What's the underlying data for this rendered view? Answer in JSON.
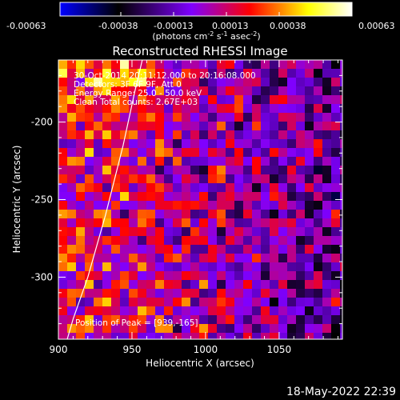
{
  "chart_data": {
    "type": "heatmap",
    "title": "Reconstructed RHESSI Image",
    "xlabel": "Heliocentric X (arcsec)",
    "ylabel": "Heliocentric Y (arcsec)",
    "xlim": [
      900,
      1093
    ],
    "ylim": [
      -340,
      -160
    ],
    "x_ticks": [
      "900",
      "950",
      "1000",
      "1050"
    ],
    "y_ticks": [
      "-200",
      "-250",
      "-300"
    ],
    "x_tick_values": [
      900,
      950,
      1000,
      1050
    ],
    "y_tick_values": [
      -200,
      -250,
      -300
    ],
    "colorbar": {
      "range": [
        -0.00063,
        0.00063
      ],
      "tick_labels": [
        "-0.00063",
        "-0.00038",
        "-0.00013",
        "0.00013",
        "0.00038",
        "0.00063"
      ],
      "unit_label_parts": [
        "(photons cm",
        "-2",
        " s",
        "-1",
        " asec",
        "-2",
        ")"
      ],
      "colors": [
        "#0000ff",
        "#000000",
        "#7f00ff",
        "#ff0000",
        "#ffff00",
        "#ffffff"
      ]
    },
    "annotations": {
      "time_range": "30-Oct-2014 20:11:12.000 to 20:16:08.000",
      "detectors": "Detectors: 3F 6F 9F, Att 0",
      "energy_range": "Energy Range: 25.0 - 50.0 keV",
      "method": "Clean    Total counts: 2.67E+03",
      "peak": "Position of Peak = [939,-165]"
    },
    "peak_position": [
      939,
      -165
    ],
    "limb_arc": [
      [
        906,
        -340
      ],
      [
        910,
        -327
      ],
      [
        920,
        -300
      ],
      [
        932,
        -260
      ],
      [
        944,
        -215
      ],
      [
        952,
        -180
      ],
      [
        957,
        -160
      ]
    ]
  },
  "timestamp": "18-May-2022 22:39"
}
